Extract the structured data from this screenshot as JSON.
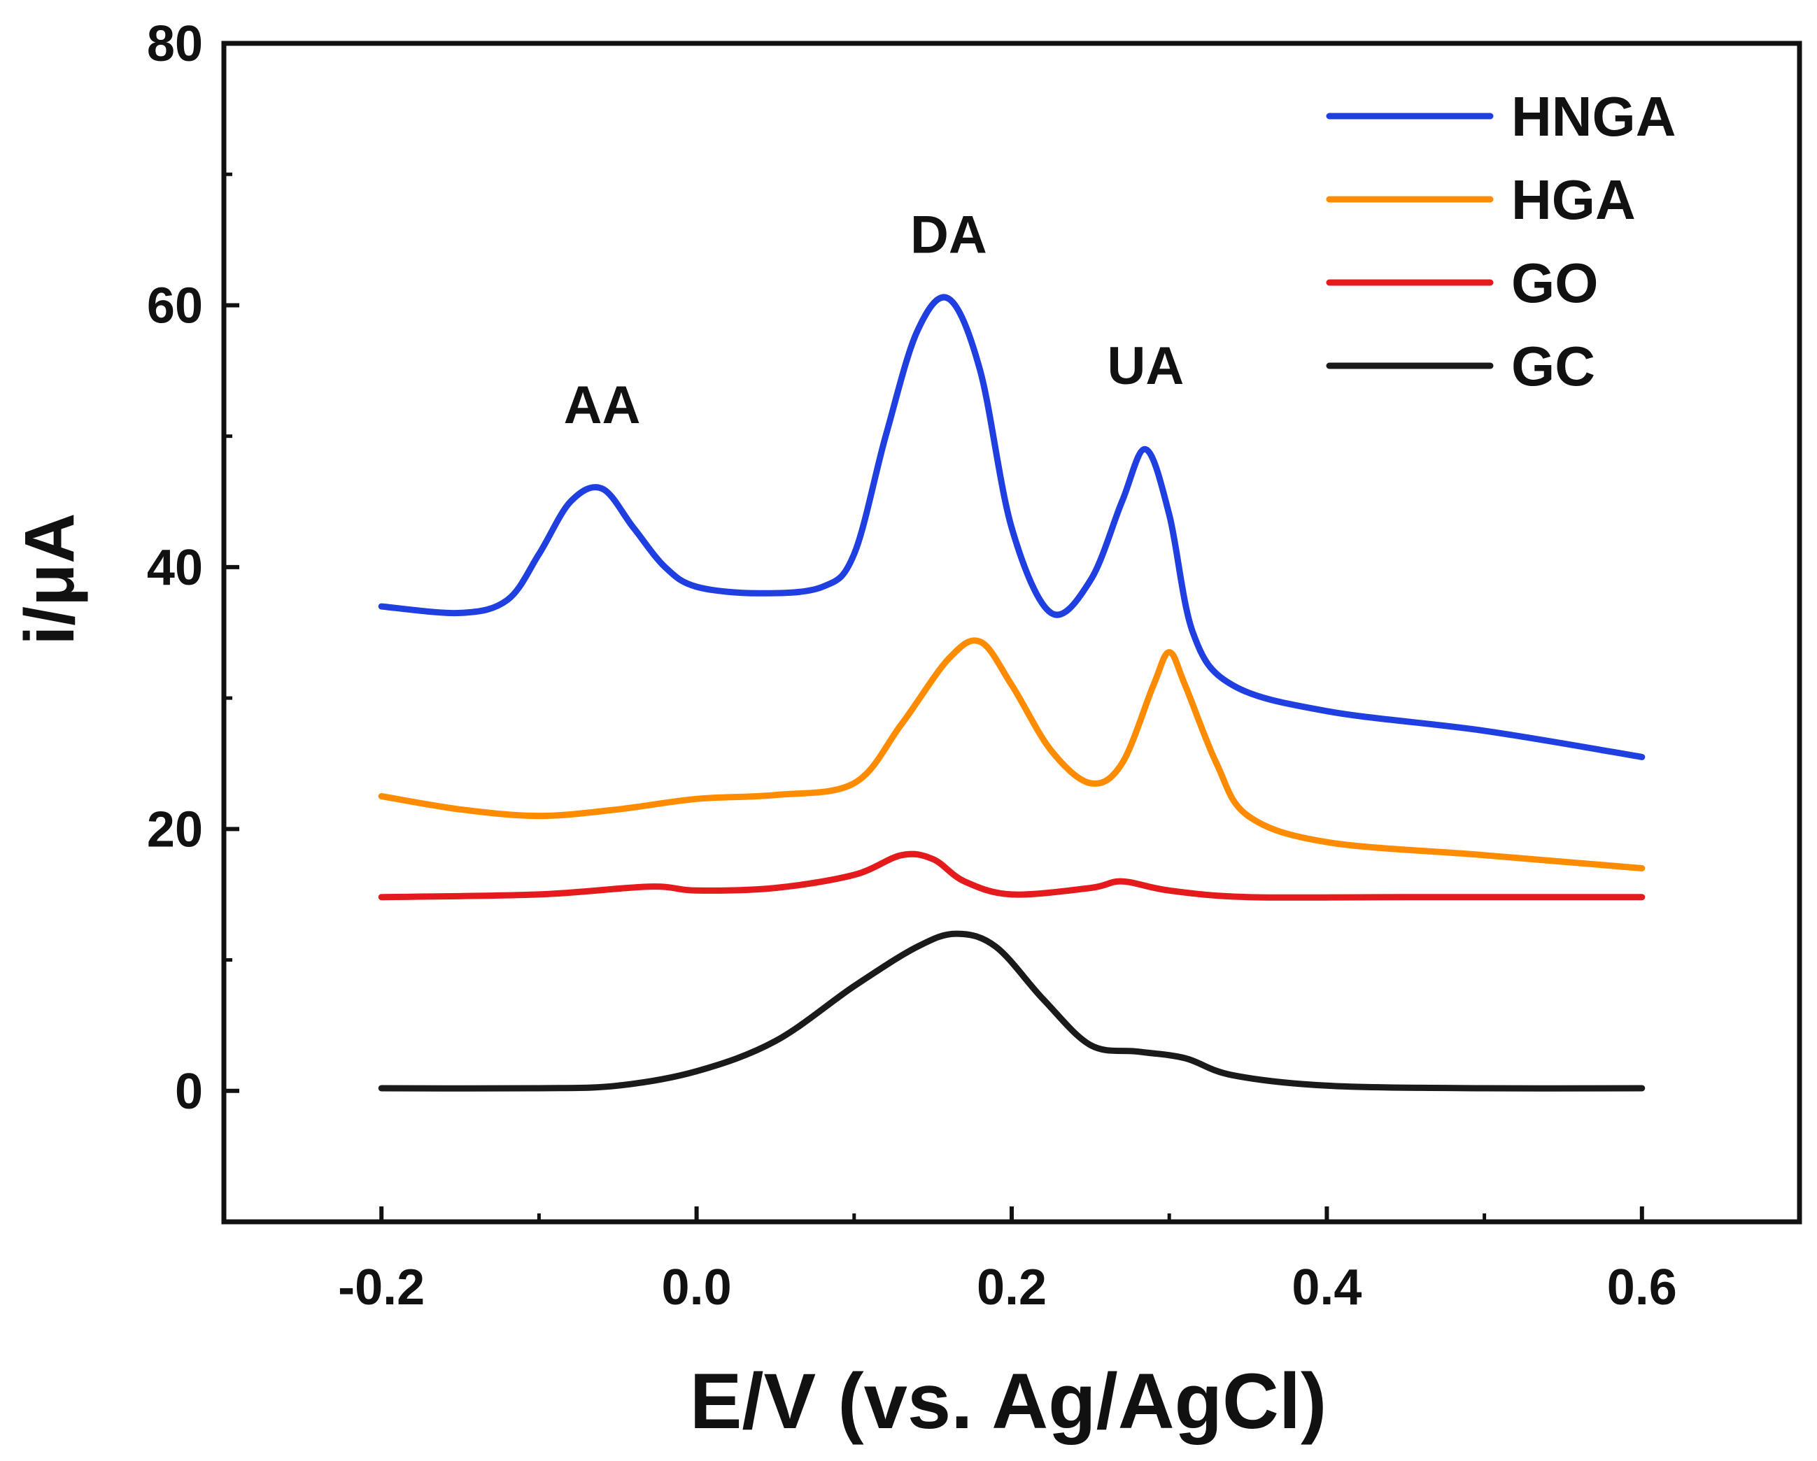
{
  "chart_data": {
    "type": "line",
    "title": "",
    "xlabel": "E/V (vs. Ag/AgCl)",
    "ylabel": "i/μA",
    "xlim": [
      -0.3,
      0.7
    ],
    "ylim": [
      -10,
      80
    ],
    "xticks": [
      -0.2,
      0.0,
      0.2,
      0.4,
      0.6
    ],
    "xtick_labels": [
      "-0.2",
      "0.0",
      "0.2",
      "0.4",
      "0.6"
    ],
    "yticks": [
      0,
      20,
      40,
      60,
      80
    ],
    "ytick_labels": [
      "0",
      "20",
      "40",
      "60",
      "80"
    ],
    "grid": false,
    "legend_position": "top-right",
    "annotations": [
      {
        "text": "AA",
        "x": -0.06,
        "y": 51
      },
      {
        "text": "DA",
        "x": 0.16,
        "y": 64
      },
      {
        "text": "UA",
        "x": 0.285,
        "y": 54
      }
    ],
    "series": [
      {
        "name": "HNGA",
        "color": "#1f3fe0",
        "x": [
          -0.2,
          -0.15,
          -0.12,
          -0.1,
          -0.08,
          -0.06,
          -0.04,
          -0.02,
          0.0,
          0.04,
          0.08,
          0.1,
          0.12,
          0.14,
          0.16,
          0.18,
          0.2,
          0.225,
          0.25,
          0.27,
          0.285,
          0.3,
          0.315,
          0.34,
          0.4,
          0.5,
          0.6
        ],
        "y": [
          37,
          36.5,
          37.5,
          41,
          45,
          46,
          43,
          40,
          38.5,
          38,
          38.5,
          41,
          50,
          58,
          60.5,
          55,
          43,
          36.5,
          39,
          45,
          49,
          44,
          35,
          31,
          29,
          27.5,
          25.5
        ]
      },
      {
        "name": "HGA",
        "color": "#ff8c00",
        "x": [
          -0.2,
          -0.15,
          -0.1,
          -0.05,
          0.0,
          0.05,
          0.1,
          0.13,
          0.16,
          0.18,
          0.2,
          0.225,
          0.25,
          0.27,
          0.29,
          0.3,
          0.31,
          0.33,
          0.35,
          0.4,
          0.5,
          0.6
        ],
        "y": [
          22.5,
          21.5,
          21,
          21.5,
          22.3,
          22.6,
          23.5,
          28,
          33,
          34.3,
          31,
          26,
          23.5,
          25,
          31,
          33.5,
          31,
          25,
          21,
          19,
          18,
          17
        ]
      },
      {
        "name": "GO",
        "color": "#e41a1c",
        "x": [
          -0.2,
          -0.1,
          -0.03,
          0.0,
          0.05,
          0.1,
          0.13,
          0.15,
          0.17,
          0.2,
          0.25,
          0.27,
          0.3,
          0.35,
          0.45,
          0.6
        ],
        "y": [
          14.8,
          15,
          15.6,
          15.3,
          15.5,
          16.5,
          18,
          17.7,
          16,
          15,
          15.5,
          16,
          15.3,
          14.8,
          14.8,
          14.8
        ]
      },
      {
        "name": "GC",
        "color": "#1a1a1a",
        "x": [
          -0.2,
          -0.1,
          -0.05,
          0.0,
          0.05,
          0.1,
          0.14,
          0.165,
          0.19,
          0.22,
          0.25,
          0.28,
          0.31,
          0.34,
          0.4,
          0.5,
          0.6
        ],
        "y": [
          0.2,
          0.2,
          0.4,
          1.5,
          3.8,
          8,
          11,
          12,
          11,
          7,
          3.5,
          3,
          2.5,
          1.2,
          0.4,
          0.2,
          0.2
        ]
      }
    ]
  }
}
